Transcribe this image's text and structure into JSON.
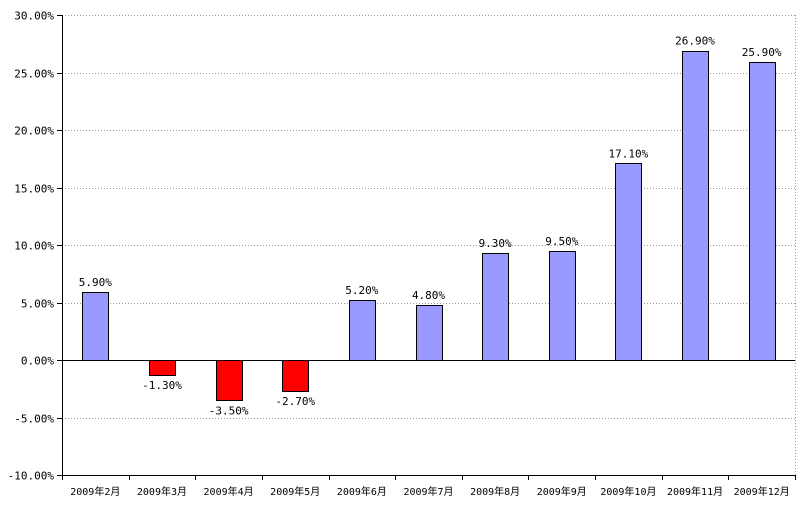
{
  "chart_data": {
    "type": "bar",
    "title": "",
    "xlabel": "",
    "ylabel": "",
    "ylim": [
      -10,
      30
    ],
    "yticks": [
      -10,
      -5,
      0,
      5,
      10,
      15,
      20,
      25,
      30
    ],
    "ytick_labels": [
      "-10.00%",
      "-5.00%",
      "0.00%",
      "5.00%",
      "10.00%",
      "15.00%",
      "20.00%",
      "25.00%",
      "30.00%"
    ],
    "categories": [
      "2009年2月",
      "2009年3月",
      "2009年4月",
      "2009年5月",
      "2009年6月",
      "2009年7月",
      "2009年8月",
      "2009年9月",
      "2009年10月",
      "2009年11月",
      "2009年12月"
    ],
    "values": [
      5.9,
      -1.3,
      -3.5,
      -2.7,
      5.2,
      4.8,
      9.3,
      9.5,
      17.1,
      26.9,
      25.9
    ],
    "value_labels": [
      "5.90%",
      "-1.30%",
      "-3.50%",
      "-2.70%",
      "5.20%",
      "4.80%",
      "9.30%",
      "9.50%",
      "17.10%",
      "26.90%",
      "25.90%"
    ],
    "grid": "horizontal dotted",
    "legend": "none",
    "colors": {
      "positive": "#9999ff",
      "negative": "#ff0000",
      "outline": "#000000",
      "gridline": "#999999"
    }
  }
}
